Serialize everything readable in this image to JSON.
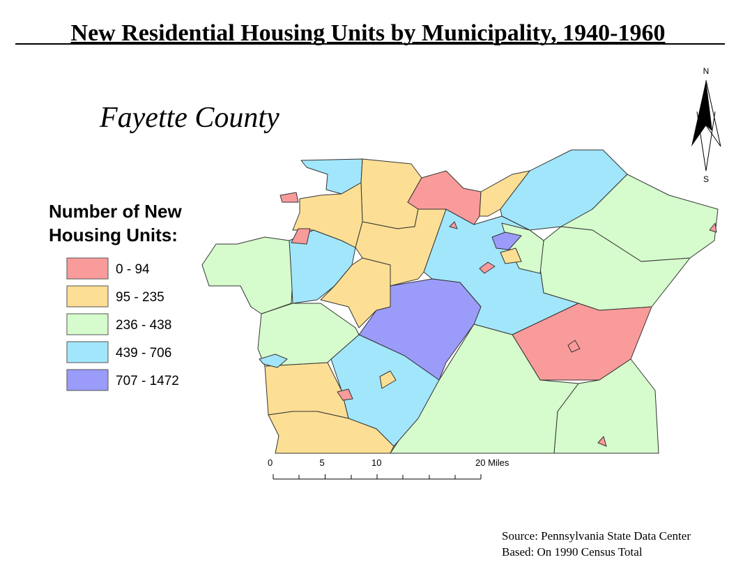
{
  "title": "New Residential Housing Units by Municipality, 1940-1960",
  "subtitle": "Fayette County",
  "legend": {
    "title_lines": [
      "Number of New",
      "Housing Units:"
    ],
    "items": [
      {
        "label": "0 - 94",
        "color": "#f99b9b"
      },
      {
        "label": "95 - 235",
        "color": "#fcdf94"
      },
      {
        "label": "236 - 438",
        "color": "#d6fbcc"
      },
      {
        "label": "439 - 706",
        "color": "#a2e6fb"
      },
      {
        "label": "707 - 1472",
        "color": "#9b9bf9"
      }
    ]
  },
  "north_arrow": {
    "north": "N",
    "south": "S"
  },
  "scale_bar": {
    "ticks": [
      0,
      5,
      10,
      {
        "value": 20,
        "label": "20 Miles"
      }
    ]
  },
  "source": [
    "Source: Pennsylvania State Data Center",
    "Based: On 1990 Census Total"
  ]
}
